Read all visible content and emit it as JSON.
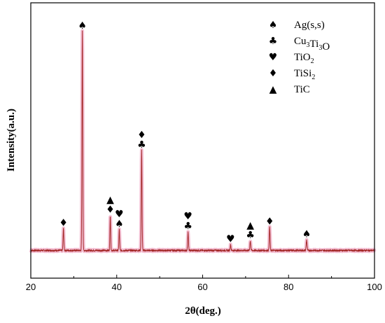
{
  "chart_data": {
    "type": "line",
    "title": "",
    "xlabel": "2θ(deg.)",
    "ylabel": "Intensity(a.u.)",
    "xlim": [
      20,
      100
    ],
    "xticks": [
      "20",
      "40",
      "60",
      "80",
      "100"
    ],
    "y_tick_labels": false,
    "line_color": "#a52a2a",
    "shadow_color": "#f4c0d4",
    "baseline": 4,
    "noise": 1.2,
    "peaks": [
      {
        "x": 27.6,
        "y": 27,
        "w": 0.13
      },
      {
        "x": 32.0,
        "y": 274,
        "w": 0.13
      },
      {
        "x": 38.5,
        "y": 44,
        "w": 0.12
      },
      {
        "x": 40.6,
        "y": 26,
        "w": 0.12
      },
      {
        "x": 45.8,
        "y": 125,
        "w": 0.13
      },
      {
        "x": 56.6,
        "y": 23,
        "w": 0.13
      },
      {
        "x": 66.5,
        "y": 7,
        "w": 0.14
      },
      {
        "x": 71.1,
        "y": 12,
        "w": 0.14
      },
      {
        "x": 75.6,
        "y": 29,
        "w": 0.13
      },
      {
        "x": 84.2,
        "y": 13,
        "w": 0.14
      }
    ],
    "legend": {
      "position": "top-right",
      "entries": [
        {
          "symbol": "spade",
          "label": "Ag(s,s)"
        },
        {
          "symbol": "club",
          "label": "Cu",
          "sub1": "3",
          "mid": "Ti",
          "sub2": "3",
          "tail": "O"
        },
        {
          "symbol": "heart",
          "label": "TiO",
          "sub1": "2"
        },
        {
          "symbol": "diamond",
          "label": "TiSi",
          "sub1": "2"
        },
        {
          "symbol": "triangle",
          "label": "TiC"
        }
      ]
    },
    "annotations": [
      {
        "x": 27.6,
        "symbols": [
          "diamond"
        ]
      },
      {
        "x": 32.0,
        "symbols": [
          "spade"
        ]
      },
      {
        "x": 38.5,
        "symbols": [
          "diamond",
          "triangle"
        ]
      },
      {
        "x": 40.6,
        "symbols": [
          "spade",
          "heart"
        ]
      },
      {
        "x": 45.8,
        "symbols": [
          "club",
          "diamond"
        ]
      },
      {
        "x": 56.6,
        "symbols": [
          "club",
          "heart"
        ]
      },
      {
        "x": 66.5,
        "symbols": [
          "heart"
        ]
      },
      {
        "x": 71.1,
        "symbols": [
          "club",
          "triangle"
        ]
      },
      {
        "x": 75.6,
        "symbols": [
          "diamond"
        ]
      },
      {
        "x": 84.2,
        "symbols": [
          "spade"
        ]
      }
    ]
  },
  "symbols": {
    "spade": "♠",
    "club": "♣",
    "heart": "♥",
    "diamond": "♦",
    "triangle": "▲"
  }
}
